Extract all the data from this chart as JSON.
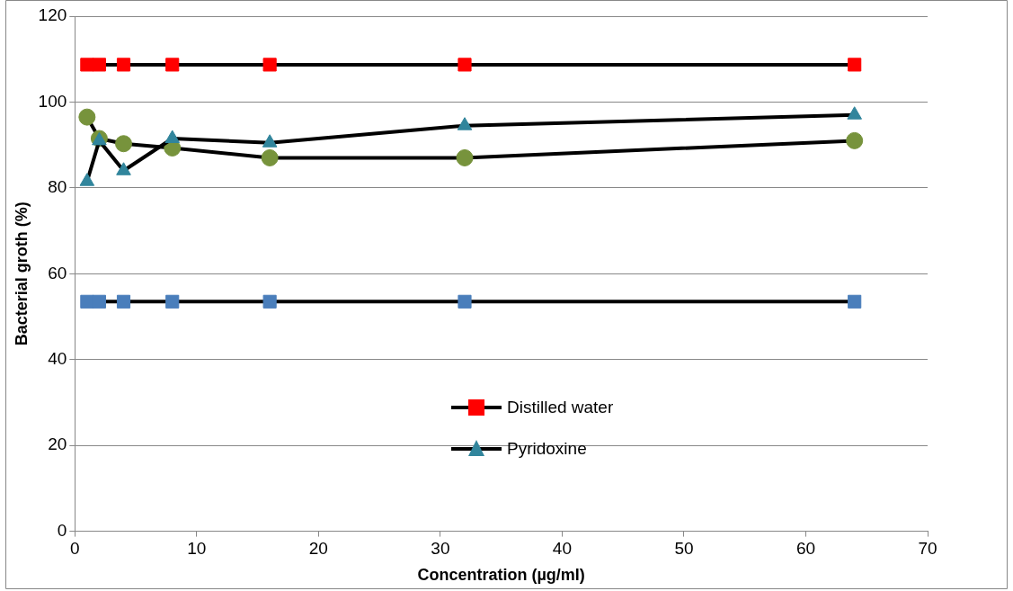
{
  "chart_data": {
    "type": "line",
    "xlabel": "Concentration (µg/ml)",
    "ylabel": "Bacterial groth (%)",
    "x": [
      1,
      2,
      4,
      8,
      16,
      32,
      64
    ],
    "series": [
      {
        "color": "#000000",
        "colors": [
          "#4a7ebb",
          "#4a7ebb",
          "#4a7ebb",
          "#4a7ebb",
          "#4a7ebb",
          "#4a7ebb",
          "#4a7ebb"
        ],
        "marker": "square",
        "values": [
          53.5,
          53.5,
          53.5,
          53.5,
          53.5,
          53.5,
          53.5
        ]
      },
      {
        "name": "Distilled water",
        "color": "#000000",
        "colors": [
          "#ff0000",
          "#ff0000",
          "#ff0000",
          "#ff0000",
          "#ff0000",
          "#ff0000",
          "#ff0000"
        ],
        "marker": "square",
        "values": [
          108.7,
          108.7,
          108.7,
          108.7,
          108.7,
          108.7,
          108.7
        ]
      },
      {
        "name": "Pyridoxine",
        "color": "#000000",
        "colors": [
          "#31859c",
          "#31859c",
          "#31859c",
          "#31859c",
          "#31859c",
          "#31859c",
          "#31859c"
        ],
        "marker": "triangle",
        "values": [
          81.5,
          91,
          84,
          91.5,
          90.5,
          94.5,
          97
        ]
      },
      {
        "color": "#000000",
        "colors": [
          "#77933c",
          "#77933c",
          "#77933c",
          "#77933c",
          "#77933c",
          "#77933c",
          "#77933c"
        ],
        "marker": "circle",
        "values": [
          96.5,
          91.5,
          90.3,
          89.3,
          87,
          87,
          91
        ]
      }
    ],
    "xlim": [
      0,
      70
    ],
    "xticks": [
      0,
      10,
      20,
      30,
      40,
      50,
      60,
      70
    ],
    "ylim": [
      0,
      120
    ],
    "yticks": [
      0,
      20,
      40,
      60,
      80,
      100,
      120
    ],
    "grid": "y",
    "legend": "bottom",
    "line_style": "solid"
  }
}
